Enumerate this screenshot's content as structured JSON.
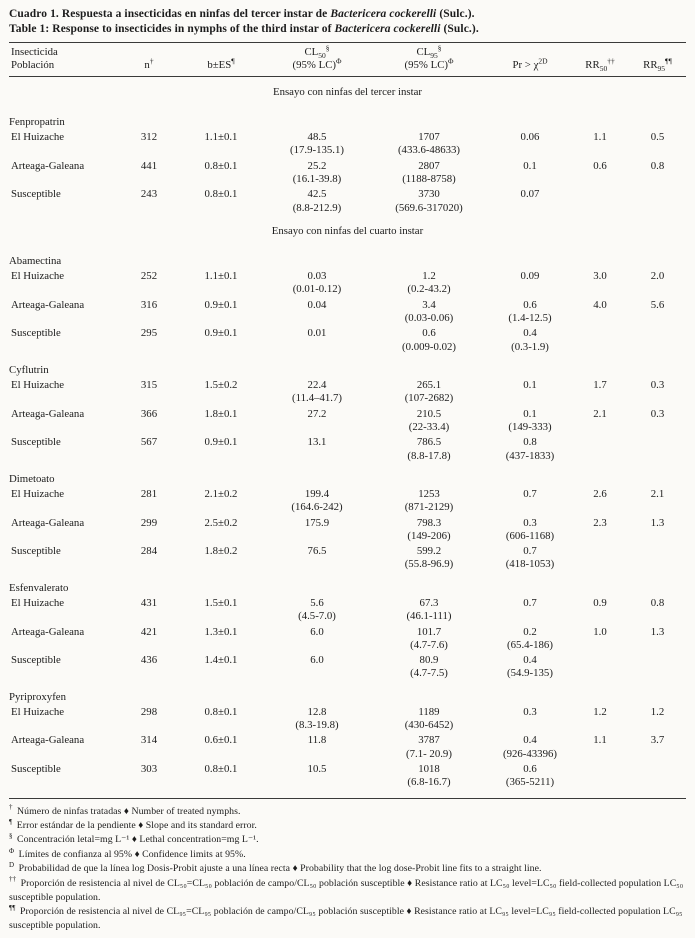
{
  "title": {
    "es_prefix": "Cuadro 1. Respuesta a insecticidas en ninfas del tercer instar de ",
    "es_species": "Bactericera cockerelli",
    "es_suffix": " (Sulc.).",
    "en_prefix": "Table 1: Response to insecticides in nymphs of the third instar of ",
    "en_species": "Bactericera cockerelli",
    "en_suffix": " (Sulc.)."
  },
  "header": {
    "col1_line1": "Insecticida",
    "col1_line2": "Población",
    "n_base": "n",
    "n_sup": "†",
    "b_base": "b±ES",
    "b_sup": "¶",
    "cl50_base": "CL",
    "cl50_sub": "50",
    "cl50_sup": "§",
    "cl50_line2": "(95% LC)",
    "cl50_line2_sup": "Φ",
    "cl95_base": "CL",
    "cl95_sub": "95",
    "cl95_sup": "§",
    "cl95_line2": "(95% LC)",
    "cl95_line2_sup": "Φ",
    "pr_base": "Pr > ",
    "pr_chi": "χ",
    "pr_exp": "2",
    "pr_mark": "D",
    "rr50_base": "RR",
    "rr50_sub": "50",
    "rr50_sup": "††",
    "rr95_base": "RR",
    "rr95_sub": "95",
    "rr95_sup": "¶¶"
  },
  "sections": [
    {
      "heading": "Ensayo con ninfas del tercer instar",
      "groups": [
        {
          "insecticide": "Fenpropatrin",
          "rows": [
            {
              "population": "El Huizache",
              "n": "312",
              "b": "1.1±0.1",
              "cl50": "48.5",
              "cl50_ci": "(17.9-135.1)",
              "cl95": "1707",
              "cl95_ci": "(433.6-48633)",
              "pr": "0.06",
              "pr_ci": "",
              "rr50": "1.1",
              "rr95": "0.5"
            },
            {
              "population": "Arteaga-Galeana",
              "n": "441",
              "b": "0.8±0.1",
              "cl50": "25.2",
              "cl50_ci": "(16.1-39.8)",
              "cl95": "2807",
              "cl95_ci": "(1188-8758)",
              "pr": "0.1",
              "pr_ci": "",
              "rr50": "0.6",
              "rr95": "0.8"
            },
            {
              "population": "Susceptible",
              "n": "243",
              "b": "0.8±0.1",
              "cl50": "42.5",
              "cl50_ci": "(8.8-212.9)",
              "cl95": "3730",
              "cl95_ci": "(569.6-317020)",
              "pr": "0.07",
              "pr_ci": "",
              "rr50": "",
              "rr95": ""
            }
          ]
        }
      ]
    },
    {
      "heading": "Ensayo con ninfas del cuarto instar",
      "groups": [
        {
          "insecticide": "Abamectina",
          "rows": [
            {
              "population": "El Huizache",
              "n": "252",
              "b": "1.1±0.1",
              "cl50": "0.03",
              "cl50_ci": "(0.01-0.12)",
              "cl95": "1.2",
              "cl95_ci": "(0.2-43.2)",
              "pr": "0.09",
              "pr_ci": "",
              "rr50": "3.0",
              "rr95": "2.0"
            },
            {
              "population": "Arteaga-Galeana",
              "n": "316",
              "b": "0.9±0.1",
              "cl50": "0.04",
              "cl50_ci": "",
              "cl95": "3.4",
              "cl95_ci": "(0.03-0.06)",
              "pr": "0.6",
              "pr_ci": "(1.4-12.5)",
              "rr50": "4.0",
              "rr95": "5.6"
            },
            {
              "population": "Susceptible",
              "n": "295",
              "b": "0.9±0.1",
              "cl50": "0.01",
              "cl50_ci": "",
              "cl95": "0.6",
              "cl95_ci": "(0.009-0.02)",
              "pr": "0.4",
              "pr_ci": "(0.3-1.9)",
              "rr50": "",
              "rr95": ""
            }
          ]
        },
        {
          "insecticide": "Cyflutrin",
          "rows": [
            {
              "population": "El Huizache",
              "n": "315",
              "b": "1.5±0.2",
              "cl50": "22.4",
              "cl50_ci": "(11.4–41.7)",
              "cl95": "265.1",
              "cl95_ci": "(107-2682)",
              "pr": "0.1",
              "pr_ci": "",
              "rr50": "1.7",
              "rr95": "0.3"
            },
            {
              "population": "Arteaga-Galeana",
              "n": "366",
              "b": "1.8±0.1",
              "cl50": "27.2",
              "cl50_ci": "",
              "cl95": "210.5",
              "cl95_ci": "(22-33.4)",
              "pr": "0.1",
              "pr_ci": "(149-333)",
              "rr50": "2.1",
              "rr95": "0.3"
            },
            {
              "population": "Susceptible",
              "n": "567",
              "b": "0.9±0.1",
              "cl50": "13.1",
              "cl50_ci": "",
              "cl95": "786.5",
              "cl95_ci": "(8.8-17.8)",
              "pr": "0.8",
              "pr_ci": "(437-1833)",
              "rr50": "",
              "rr95": ""
            }
          ]
        },
        {
          "insecticide": "Dimetoato",
          "rows": [
            {
              "population": "El Huizache",
              "n": "281",
              "b": "2.1±0.2",
              "cl50": "199.4",
              "cl50_ci": "(164.6-242)",
              "cl95": "1253",
              "cl95_ci": "(871-2129)",
              "pr": "0.7",
              "pr_ci": "",
              "rr50": "2.6",
              "rr95": "2.1"
            },
            {
              "population": "Arteaga-Galeana",
              "n": "299",
              "b": "2.5±0.2",
              "cl50": "175.9",
              "cl50_ci": "",
              "cl95": "798.3",
              "cl95_ci": "(149-206)",
              "pr": "0.3",
              "pr_ci": "(606-1168)",
              "rr50": "2.3",
              "rr95": "1.3"
            },
            {
              "population": "Susceptible",
              "n": "284",
              "b": "1.8±0.2",
              "cl50": "76.5",
              "cl50_ci": "",
              "cl95": "599.2",
              "cl95_ci": "(55.8-96.9)",
              "pr": "0.7",
              "pr_ci": "(418-1053)",
              "rr50": "",
              "rr95": ""
            }
          ]
        },
        {
          "insecticide": "Esfenvalerato",
          "rows": [
            {
              "population": "El Huizache",
              "n": "431",
              "b": "1.5±0.1",
              "cl50": "5.6",
              "cl50_ci": "(4.5-7.0)",
              "cl95": "67.3",
              "cl95_ci": "(46.1-111)",
              "pr": "0.7",
              "pr_ci": "",
              "rr50": "0.9",
              "rr95": "0.8"
            },
            {
              "population": "Arteaga-Galeana",
              "n": "421",
              "b": "1.3±0.1",
              "cl50": "6.0",
              "cl50_ci": "",
              "cl95": "101.7",
              "cl95_ci": "(4.7-7.6)",
              "pr": "0.2",
              "pr_ci": "(65.4-186)",
              "rr50": "1.0",
              "rr95": "1.3"
            },
            {
              "population": "Susceptible",
              "n": "436",
              "b": "1.4±0.1",
              "cl50": "6.0",
              "cl50_ci": "",
              "cl95": "80.9",
              "cl95_ci": "(4.7-7.5)",
              "pr": "0.4",
              "pr_ci": "(54.9-135)",
              "rr50": "",
              "rr95": ""
            }
          ]
        },
        {
          "insecticide": "Pyriproxyfen",
          "rows": [
            {
              "population": "El Huizache",
              "n": "298",
              "b": "0.8±0.1",
              "cl50": "12.8",
              "cl50_ci": "(8.3-19.8)",
              "cl95": "1189",
              "cl95_ci": "(430-6452)",
              "pr": "0.3",
              "pr_ci": "",
              "rr50": "1.2",
              "rr95": "1.2"
            },
            {
              "population": "Arteaga-Galeana",
              "n": "314",
              "b": "0.6±0.1",
              "cl50": "11.8",
              "cl50_ci": "",
              "cl95": "3787",
              "cl95_ci": "(7.1- 20.9)",
              "pr": "0.4",
              "pr_ci": "(926-43396)",
              "rr50": "1.1",
              "rr95": "3.7"
            },
            {
              "population": "Susceptible",
              "n": "303",
              "b": "0.8±0.1",
              "cl50": "10.5",
              "cl50_ci": "",
              "cl95": "1018",
              "cl95_ci": "(6.8-16.7)",
              "pr": "0.6",
              "pr_ci": "(365-5211)",
              "rr50": "",
              "rr95": ""
            }
          ]
        }
      ]
    }
  ],
  "footnotes": [
    {
      "mark": "†",
      "text": "Número de ninfas tratadas ♦ Number of treated nymphs."
    },
    {
      "mark": "¶",
      "text": "Error estándar de la pendiente ♦ Slope and its standard error."
    },
    {
      "mark": "§",
      "text": "Concentración letal=mg L⁻¹ ♦ Lethal concentration=mg L⁻¹."
    },
    {
      "mark": "Φ",
      "text": "Límites de confianza al 95% ♦ Confidence limits at 95%."
    },
    {
      "mark": "D",
      "text": "Probabilidad de que la línea log Dosis-Probit ajuste a una línea recta ♦ Probability that the log dose-Probit line fits to a straight line."
    },
    {
      "mark": "††",
      "text": "Proporción de resistencia al nivel de CL₅₀=CL₅₀ población de campo/CL₅₀ población susceptible ♦ Resistance ratio at LC₅₀ level=LC₅₀ field-collected population LC₅₀ susceptible population."
    },
    {
      "mark": "¶¶",
      "text": "Proporción de resistencia al nivel de CL₉₅=CL₉₅ población de campo/CL₉₅ población susceptible ♦ Resistance ratio at LC₉₅ level=LC₉₅ field-collected population LC₉₅ susceptible population."
    }
  ]
}
